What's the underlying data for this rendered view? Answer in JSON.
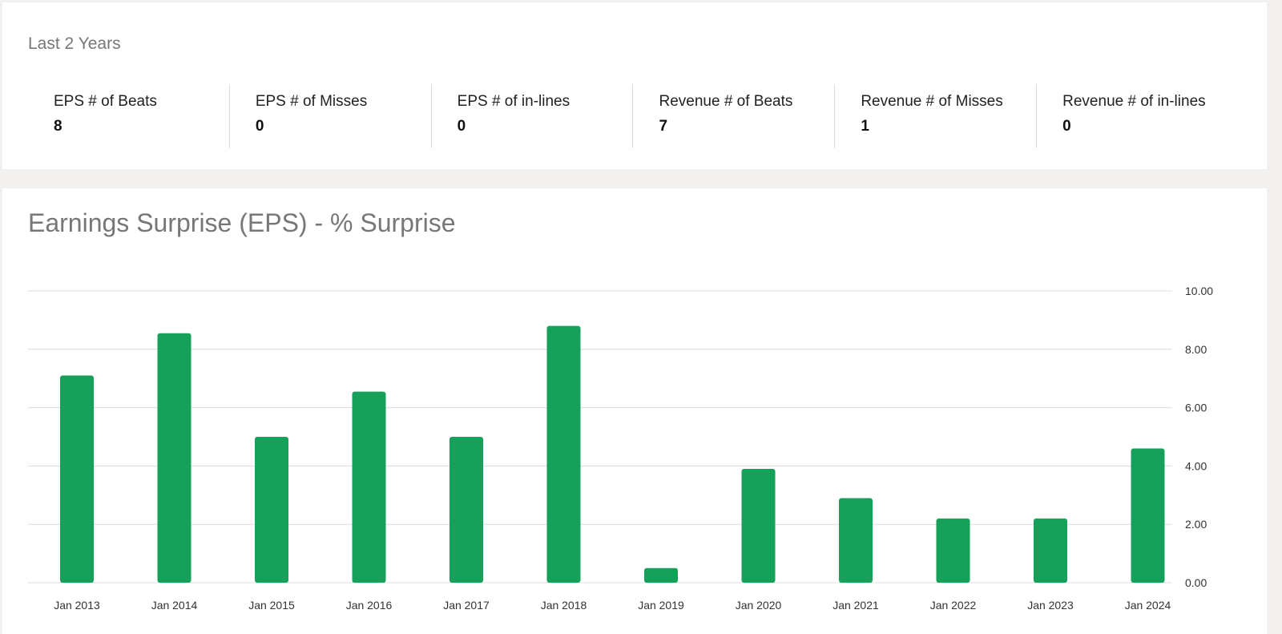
{
  "summary": {
    "period_title": "Last 2 Years",
    "stats": [
      {
        "label": "EPS # of Beats",
        "value": "8"
      },
      {
        "label": "EPS # of Misses",
        "value": "0"
      },
      {
        "label": "EPS # of in-lines",
        "value": "0"
      },
      {
        "label": "Revenue # of Beats",
        "value": "7"
      },
      {
        "label": "Revenue # of Misses",
        "value": "1"
      },
      {
        "label": "Revenue # of in-lines",
        "value": "0"
      }
    ]
  },
  "colors": {
    "bar": "#16a05a",
    "grid": "#dcdcdc",
    "title_text": "#777777",
    "page_background": "#f2f1f0"
  },
  "chart_data": {
    "type": "bar",
    "title": "Earnings Surprise (EPS) - % Surprise",
    "categories": [
      "Jan 2013",
      "Jan 2014",
      "Jan 2015",
      "Jan 2016",
      "Jan 2017",
      "Jan 2018",
      "Jan 2019",
      "Jan 2020",
      "Jan 2021",
      "Jan 2022",
      "Jan 2023",
      "Jan 2024"
    ],
    "values": [
      7.1,
      8.55,
      5.0,
      6.55,
      5.0,
      8.8,
      0.5,
      3.9,
      2.9,
      2.2,
      2.2,
      4.6
    ],
    "ylim": [
      0,
      10
    ],
    "yticks": [
      "0.00",
      "2.00",
      "4.00",
      "6.00",
      "8.00",
      "10.00"
    ],
    "y_axis_position": "right",
    "grid": true,
    "legend": "none"
  }
}
